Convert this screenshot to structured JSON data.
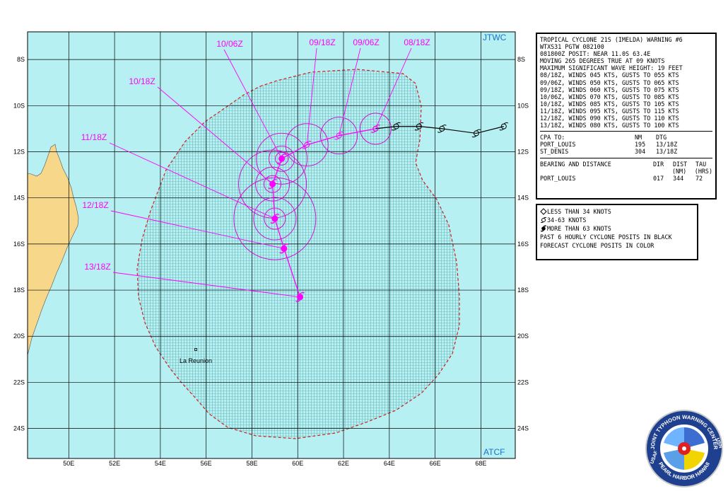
{
  "map": {
    "corner_top": "JTWC",
    "corner_bottom": "ATCF",
    "lon_labels": [
      "50E",
      "52E",
      "54E",
      "56E",
      "58E",
      "60E",
      "62E",
      "64E",
      "66E",
      "68E"
    ],
    "lat_labels": [
      "8S",
      "10S",
      "12S",
      "14S",
      "16S",
      "18S",
      "20S",
      "22S",
      "24S"
    ],
    "place": "La Reunion",
    "forecast_labels": [
      "08/18Z",
      "09/06Z",
      "09/18Z",
      "10/06Z",
      "10/18Z",
      "11/18Z",
      "12/18Z",
      "13/18Z"
    ],
    "colors": {
      "ocean": "#b6f0f2",
      "land": "#f7d88a",
      "track": "#ff00ff",
      "danger_border": "#d21e1e",
      "grid": "#000000"
    },
    "past_track": [
      {
        "lon": 69.0,
        "lat": 10.9
      },
      {
        "lon": 67.8,
        "lat": 11.2
      },
      {
        "lon": 66.3,
        "lat": 11.0
      },
      {
        "lon": 65.3,
        "lat": 10.9
      },
      {
        "lon": 64.3,
        "lat": 10.9
      },
      {
        "lon": 63.4,
        "lat": 11.0
      }
    ],
    "forecast_track": [
      {
        "tau": "08/18Z",
        "lon": 63.4,
        "lat": 11.0,
        "intensity": "34-63"
      },
      {
        "tau": "09/06Z",
        "lon": 61.8,
        "lat": 11.3,
        "intensity": "34-63"
      },
      {
        "tau": "09/18Z",
        "lon": 60.4,
        "lat": 11.7,
        "intensity": "34-63"
      },
      {
        "tau": "10/06Z",
        "lon": 59.3,
        "lat": 12.3,
        "intensity": ">63"
      },
      {
        "tau": "10/18Z",
        "lon": 58.9,
        "lat": 13.4,
        "intensity": ">63"
      },
      {
        "tau": "11/18Z",
        "lon": 59.0,
        "lat": 14.9,
        "intensity": ">63"
      },
      {
        "tau": "12/18Z",
        "lon": 59.4,
        "lat": 16.2,
        "intensity": ">63"
      },
      {
        "tau": "13/18Z",
        "lon": 60.1,
        "lat": 18.3,
        "intensity": ">63"
      }
    ]
  },
  "info": {
    "lines": [
      "TROPICAL CYCLONE 21S (IMELDA) WARNING #6",
      "WTXS31 PGTW 082100",
      "081800Z POSIT: NEAR 11.0S 63.4E",
      "MOVING 265 DEGREES TRUE AT 09 KNOTS",
      "MAXIMUM SIGNIFICANT WAVE HEIGHT: 19 FEET",
      "08/18Z, WINDS 045 KTS, GUSTS TO 055 KTS",
      "09/06Z, WINDS 050 KTS, GUSTS TO 065 KTS",
      "09/18Z, WINDS 060 KTS, GUSTS TO 075 KTS",
      "10/06Z, WINDS 070 KTS, GUSTS TO 085 KTS",
      "10/18Z, WINDS 085 KTS, GUSTS TO 105 KTS",
      "11/18Z, WINDS 095 KTS, GUSTS TO 115 KTS",
      "12/18Z, WINDS 090 KTS, GUSTS TO 110 KTS",
      "13/18Z, WINDS 080 KTS, GUSTS TO 100 KTS"
    ],
    "cpa_title": "CPA TO:",
    "cpa_nm": "NM",
    "cpa_dtg": "DTG",
    "cpa_rows": [
      {
        "place": "PORT_LOUIS",
        "nm": "195",
        "dtg": "13/18Z"
      },
      {
        "place": "ST_DENIS",
        "nm": "304",
        "dtg": "13/18Z"
      }
    ],
    "bearing_title": "BEARING AND DISTANCE",
    "col_dir": "DIR",
    "col_dist": "DIST",
    "col_tau": "TAU",
    "col_dist_unit": "(NM)",
    "col_tau_unit": "(HRS)",
    "bearing_rows": [
      {
        "place": "PORT_LOUIS",
        "dir": "017",
        "dist": "344",
        "tau": "72"
      }
    ]
  },
  "legend": {
    "items": [
      {
        "icon": "hollow-diamond-icon",
        "label": "LESS THAN 34 KNOTS"
      },
      {
        "icon": "tropical-storm-icon",
        "label": "34-63 KNOTS"
      },
      {
        "icon": "cyclone-icon",
        "label": "MORE THAN 63 KNOTS"
      }
    ],
    "note1": "PAST 6 HOURLY CYCLONE POSITS IN BLACK",
    "note2": "FORECAST CYCLONE POSITS IN COLOR"
  },
  "seal": {
    "top": "JOINT TYPHOON WARNING CENTER",
    "bottom": "PEARL HARBOR HAWAII",
    "left": "USAF",
    "right": "USN"
  }
}
